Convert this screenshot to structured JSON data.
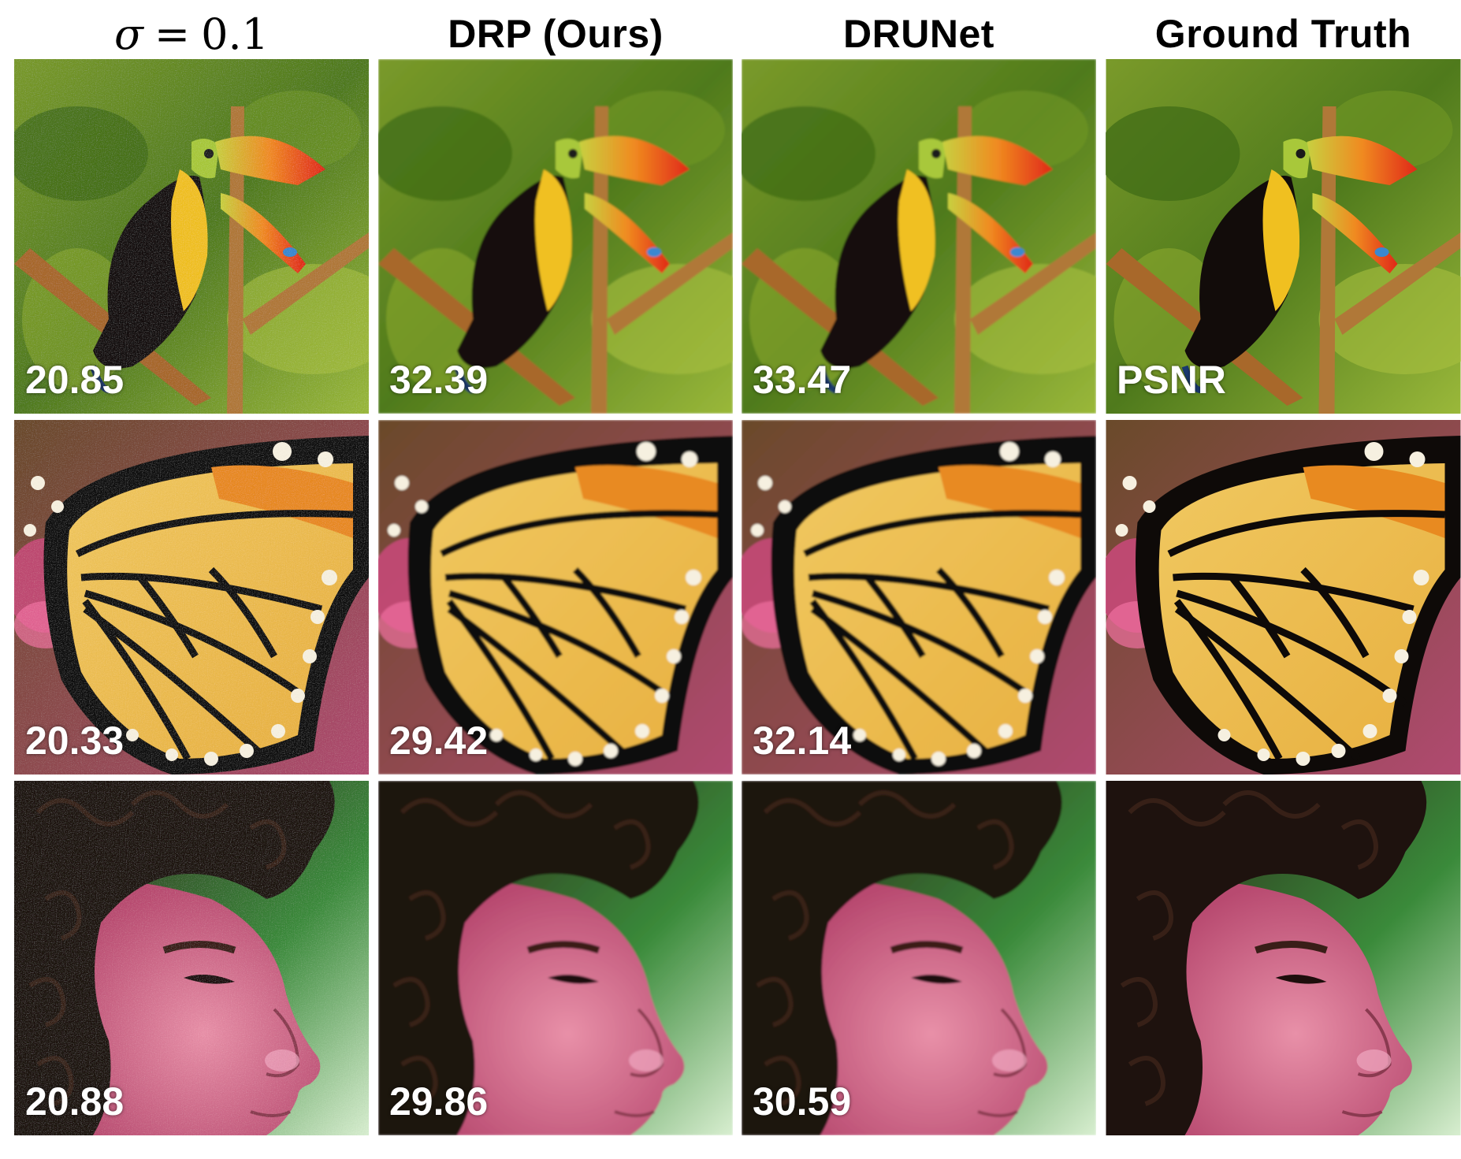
{
  "headers": {
    "noisy": {
      "symbol": "σ",
      "equals": "=",
      "value": "0.1"
    },
    "drp": "DRP (Ours)",
    "drunet": "DRUNet",
    "ground_truth": "Ground Truth"
  },
  "rows": [
    {
      "subject": "toucan",
      "noisy_psnr": "20.85",
      "drp_psnr": "32.39",
      "drunet_psnr": "33.47",
      "gt_label": "PSNR"
    },
    {
      "subject": "butterfly",
      "noisy_psnr": "20.33",
      "drp_psnr": "29.42",
      "drunet_psnr": "32.14",
      "gt_label": ""
    },
    {
      "subject": "child-face",
      "noisy_psnr": "20.88",
      "drp_psnr": "29.86",
      "drunet_psnr": "30.59",
      "gt_label": ""
    }
  ],
  "colors": {
    "psnr_text": "#ffffff",
    "header_text": "#000000",
    "background": "#ffffff"
  }
}
